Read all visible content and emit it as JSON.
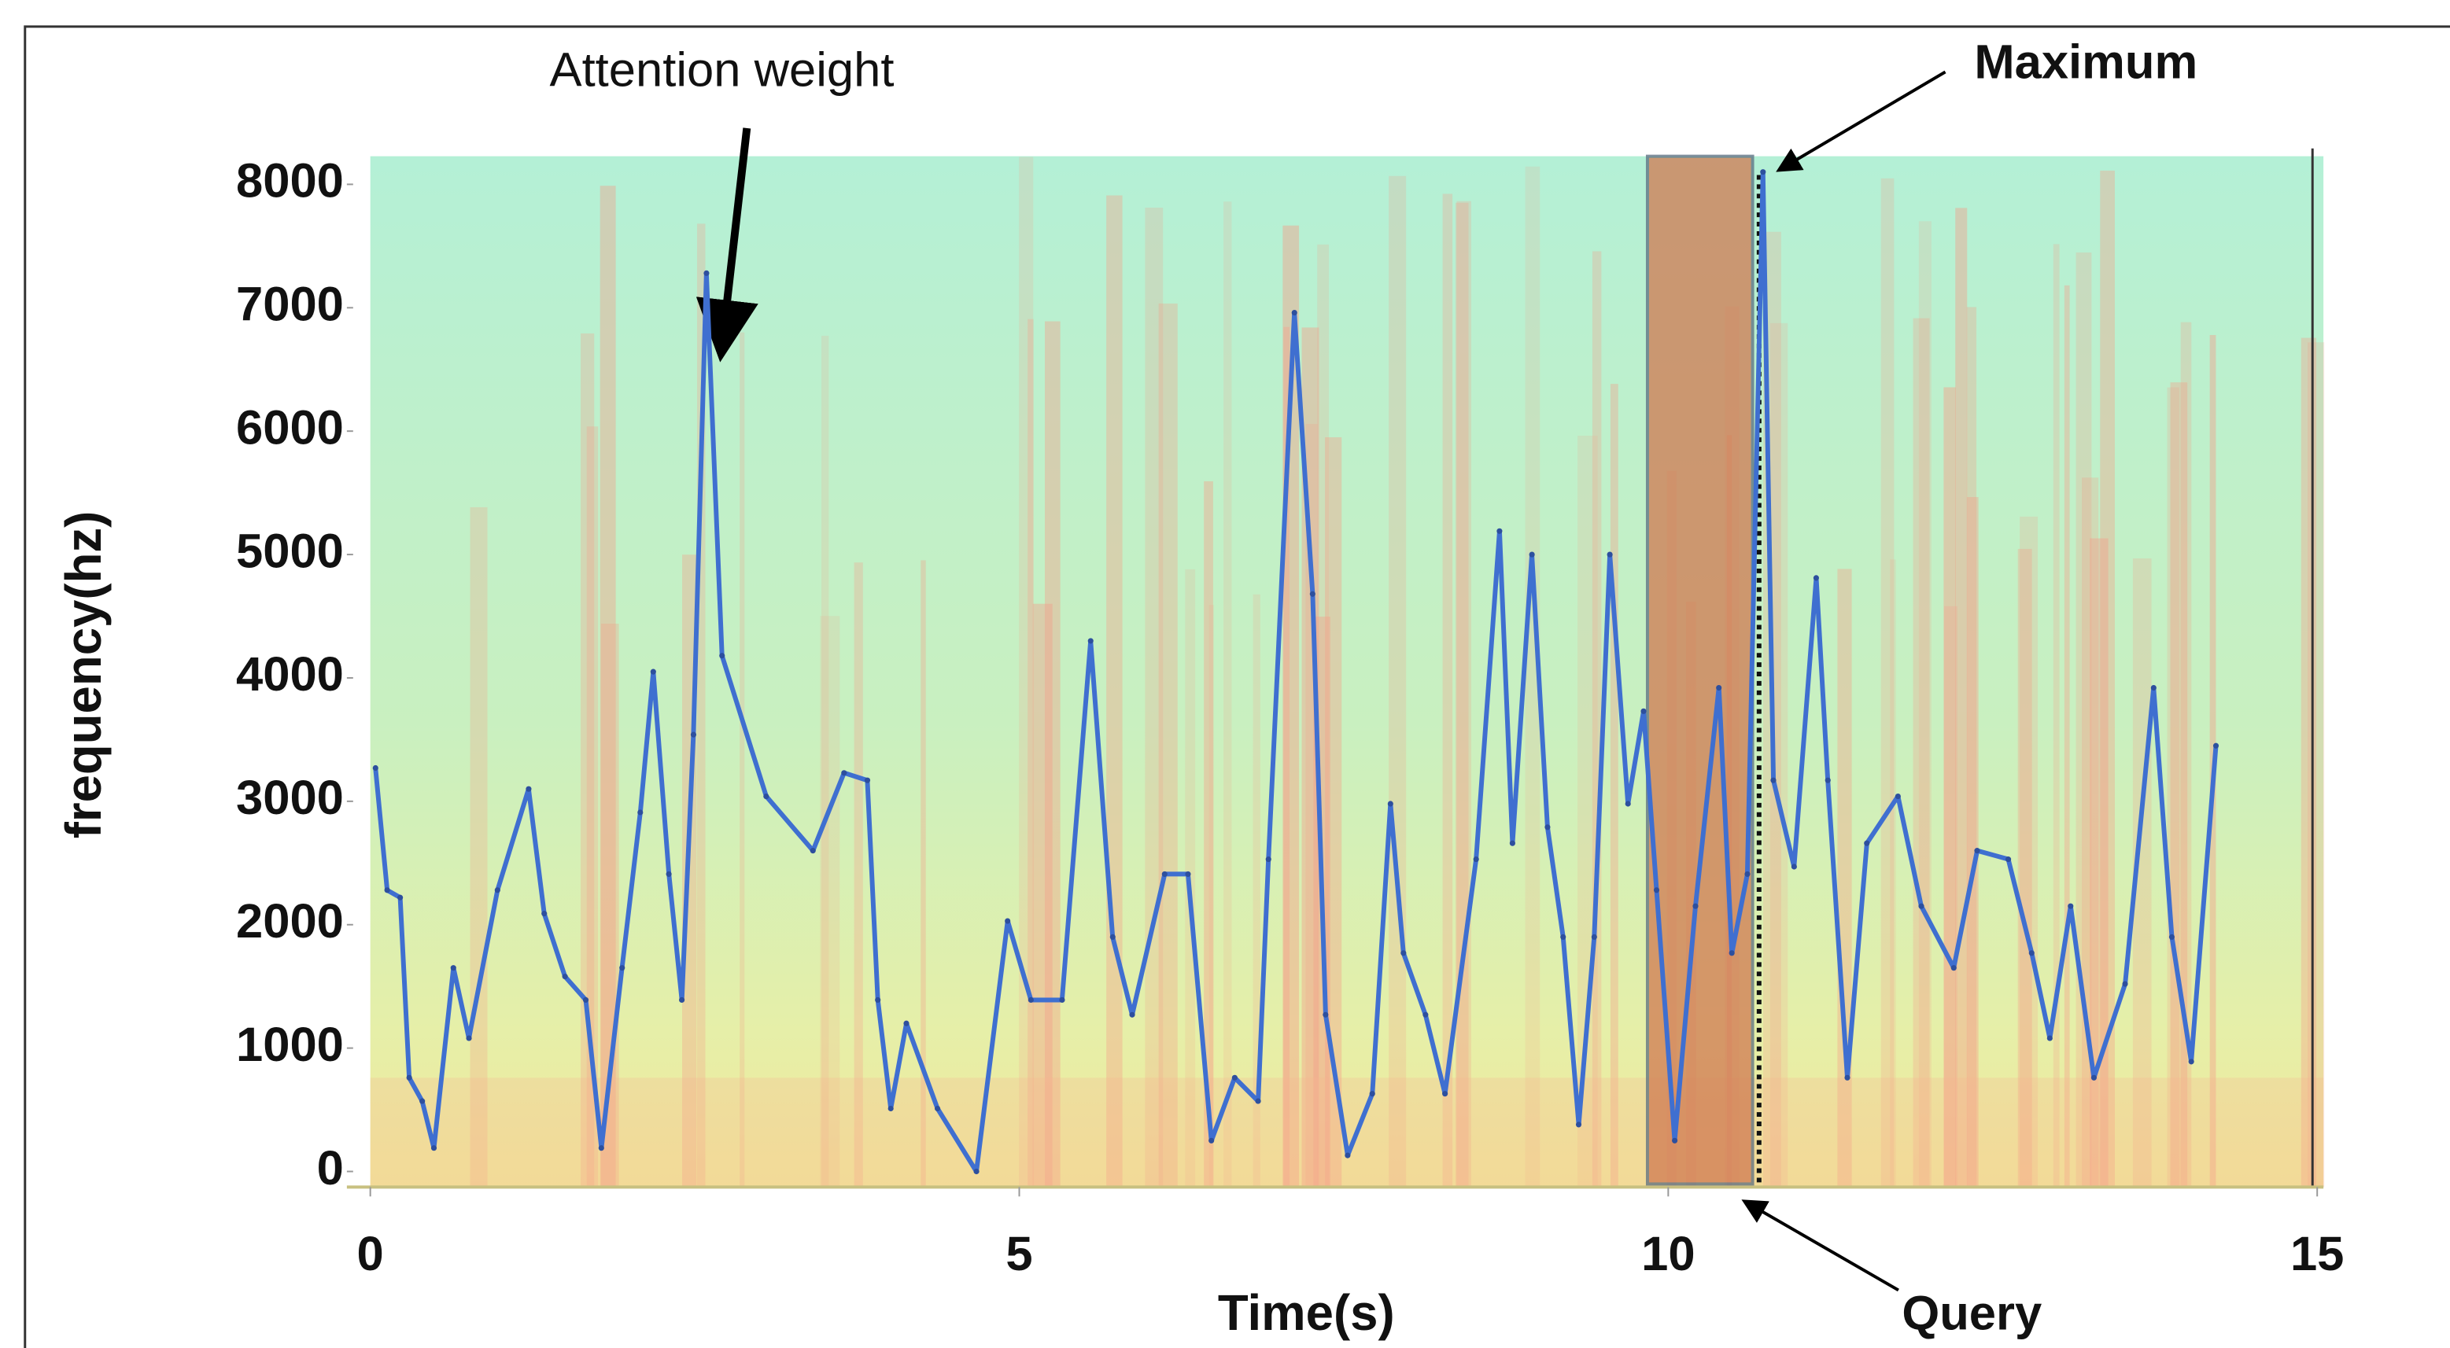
{
  "chart_data": {
    "type": "line",
    "xlabel": "Time(s)",
    "ylabel": "frequency(hz)",
    "xlim": [
      0,
      15
    ],
    "ylim": [
      0,
      8000
    ],
    "xticks": [
      0,
      5,
      10,
      15
    ],
    "yticks": [
      0,
      1000,
      2000,
      3000,
      4000,
      5000,
      6000,
      7000,
      8000
    ],
    "x": [
      0.04,
      0.13,
      0.23,
      0.3,
      0.4,
      0.49,
      0.64,
      0.76,
      0.98,
      1.22,
      1.34,
      1.5,
      1.66,
      1.78,
      1.94,
      2.08,
      2.18,
      2.3,
      2.4,
      2.49,
      2.59,
      2.71,
      3.05,
      3.41,
      3.65,
      3.83,
      3.91,
      4.01,
      4.13,
      4.37,
      4.67,
      4.91,
      5.09,
      5.33,
      5.55,
      5.72,
      5.87,
      6.12,
      6.3,
      6.48,
      6.66,
      6.84,
      6.92,
      7.12,
      7.26,
      7.36,
      7.53,
      7.72,
      7.86,
      7.96,
      8.13,
      8.28,
      8.52,
      8.7,
      8.8,
      8.95,
      9.07,
      9.19,
      9.31,
      9.43,
      9.55,
      9.69,
      9.81,
      9.91,
      10.05,
      10.21,
      10.39,
      10.49,
      10.61,
      10.73,
      10.81,
      10.97,
      11.14,
      11.23,
      11.38,
      11.53,
      11.77,
      11.95,
      12.2,
      12.38,
      12.62,
      12.8,
      12.94,
      13.1,
      13.28,
      13.52,
      13.74,
      13.88,
      14.03,
      14.22
    ],
    "series": [
      {
        "color": "#3f6fd0",
        "values": [
          3270,
          2280,
          2220,
          760,
          570,
          190,
          1650,
          1080,
          2280,
          3100,
          2090,
          1580,
          1390,
          190,
          1650,
          2910,
          4050,
          2410,
          1390,
          3540,
          7280,
          4180,
          3040,
          2600,
          3230,
          3170,
          1390,
          510,
          1200,
          510,
          0,
          2030,
          1390,
          1390,
          4300,
          1900,
          1270,
          2410,
          2410,
          250,
          760,
          570,
          2530,
          6960,
          4680,
          1270,
          130,
          630,
          2980,
          1770,
          1270,
          630,
          2530,
          5190,
          2660,
          5000,
          2790,
          1900,
          380,
          1900,
          5000,
          2980,
          3730,
          2280,
          250,
          2150,
          3920,
          1770,
          2410,
          8100,
          3170,
          2470,
          4810,
          3170,
          760,
          2660,
          3040,
          2150,
          1650,
          2600,
          2530,
          1770,
          1080,
          2150,
          760,
          1520,
          3920,
          1900,
          890,
          3450
        ]
      }
    ],
    "query_span": [
      9.84,
      10.65
    ],
    "maximum_x": 10.7,
    "annotations": [
      "Attention weight",
      "Maximum",
      "Query"
    ]
  }
}
